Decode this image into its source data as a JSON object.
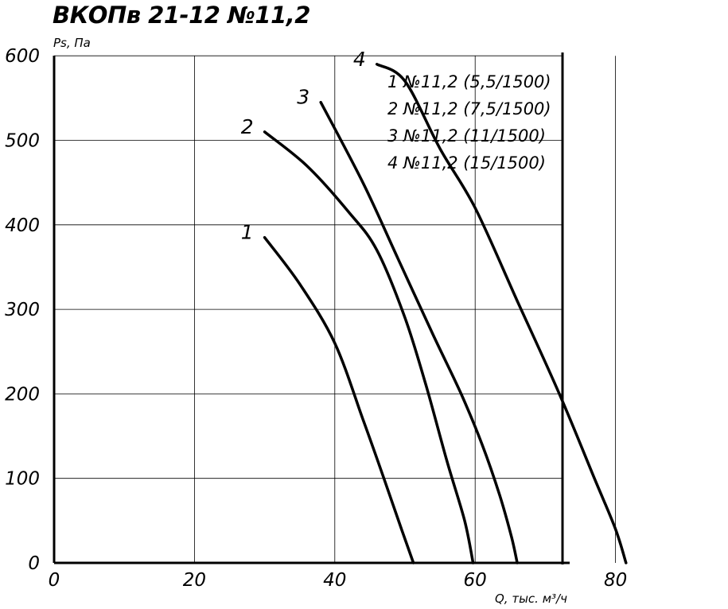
{
  "chart_data": {
    "type": "line",
    "title": "ВКОПв 21-12 №11,2",
    "xlabel": "Q, тыс. м³/ч",
    "ylabel": "Ps, Па",
    "xlim": [
      0,
      84
    ],
    "ylim": [
      0,
      600
    ],
    "x_ticks": [
      "0",
      "20",
      "40",
      "60",
      "80"
    ],
    "y_ticks": [
      "0",
      "100",
      "200",
      "300",
      "400",
      "500",
      "600"
    ],
    "grid": true,
    "legend_position": "top-right",
    "series": [
      {
        "name": "1 №11,2 (5,5/1500)",
        "label": "1",
        "x": [
          30,
          35,
          40,
          44,
          47,
          49.5,
          51.2
        ],
        "y": [
          385,
          330,
          260,
          170,
          100,
          40,
          0
        ]
      },
      {
        "name": "2 №11,2 (7,5/1500)",
        "label": "2",
        "x": [
          30,
          36,
          42,
          46,
          50,
          53,
          56,
          58.5,
          59.7
        ],
        "y": [
          510,
          470,
          415,
          370,
          290,
          210,
          120,
          50,
          0
        ]
      },
      {
        "name": "3 №11,2 (11/1500)",
        "label": "3",
        "x": [
          38,
          44,
          49,
          54,
          58,
          61,
          63.5,
          65.2,
          66
        ],
        "y": [
          545,
          450,
          360,
          270,
          200,
          140,
          80,
          30,
          0
        ]
      },
      {
        "name": "4 №11,2 (15/1500)",
        "label": "4",
        "x": [
          46,
          50,
          55,
          60,
          66,
          72,
          77,
          80,
          81.5
        ],
        "y": [
          590,
          570,
          490,
          420,
          310,
          200,
          100,
          40,
          0
        ]
      }
    ]
  }
}
